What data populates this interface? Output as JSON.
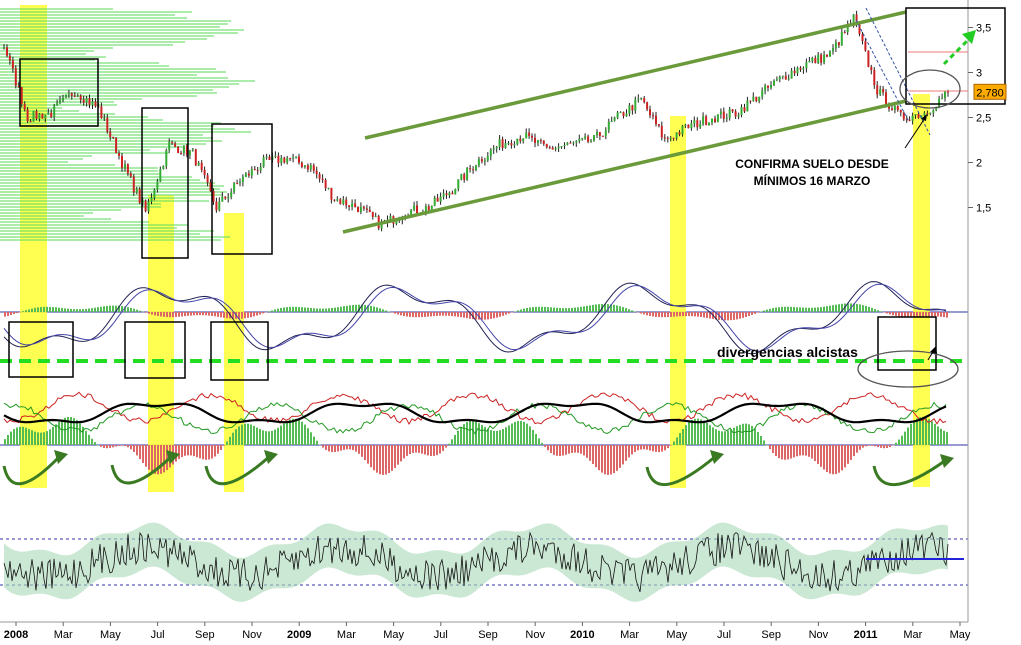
{
  "chart_data": {
    "type": "line",
    "price_axis": {
      "ticks": [
        {
          "label": "3,5",
          "value": 3.5
        },
        {
          "label": "3",
          "value": 3.0
        },
        {
          "label": "2,5",
          "value": 2.5
        },
        {
          "label": "2",
          "value": 2.0
        },
        {
          "label": "1,5",
          "value": 1.5
        }
      ],
      "ylim": [
        1.05,
        3.75
      ],
      "last_price_label": "2,780",
      "last_price": 2.78
    },
    "time_axis": {
      "labels": [
        {
          "label": "2008",
          "bold": true
        },
        {
          "label": "Mar",
          "bold": false
        },
        {
          "label": "May",
          "bold": false
        },
        {
          "label": "Jul",
          "bold": false
        },
        {
          "label": "Sep",
          "bold": false
        },
        {
          "label": "Nov",
          "bold": false
        },
        {
          "label": "2009",
          "bold": true
        },
        {
          "label": "Mar",
          "bold": false
        },
        {
          "label": "May",
          "bold": false
        },
        {
          "label": "Jul",
          "bold": false
        },
        {
          "label": "Sep",
          "bold": false
        },
        {
          "label": "Nov",
          "bold": false
        },
        {
          "label": "2010",
          "bold": true
        },
        {
          "label": "Mar",
          "bold": false
        },
        {
          "label": "May",
          "bold": false
        },
        {
          "label": "Jul",
          "bold": false
        },
        {
          "label": "Sep",
          "bold": false
        },
        {
          "label": "Nov",
          "bold": false
        },
        {
          "label": "2011",
          "bold": true
        },
        {
          "label": "Mar",
          "bold": false
        },
        {
          "label": "May",
          "bold": false
        }
      ]
    },
    "price_series": {
      "dates": [
        "2008-01",
        "2008-02",
        "2008-03",
        "2008-04",
        "2008-05",
        "2008-06",
        "2008-07",
        "2008-08",
        "2008-09",
        "2008-10",
        "2008-11",
        "2008-12",
        "2009-01",
        "2009-02",
        "2009-03",
        "2009-04",
        "2009-05",
        "2009-06",
        "2009-07",
        "2009-08",
        "2009-09",
        "2009-10",
        "2009-11",
        "2009-12",
        "2010-01",
        "2010-02",
        "2010-03",
        "2010-04",
        "2010-05",
        "2010-06",
        "2010-07",
        "2010-08",
        "2010-09",
        "2010-10",
        "2010-11",
        "2010-12",
        "2011-01",
        "2011-02",
        "2011-03",
        "2011-04",
        "2011-05"
      ],
      "values": [
        3.3,
        2.5,
        2.55,
        2.8,
        2.6,
        2.0,
        1.45,
        2.2,
        2.1,
        1.5,
        1.8,
        2.0,
        2.05,
        1.95,
        1.6,
        1.5,
        1.3,
        1.45,
        1.5,
        1.7,
        2.0,
        2.2,
        2.3,
        2.15,
        2.2,
        2.25,
        2.5,
        2.7,
        2.25,
        2.4,
        2.5,
        2.55,
        2.75,
        2.95,
        3.1,
        3.2,
        3.6,
        2.8,
        2.5,
        2.55,
        2.78
      ]
    },
    "annotations": {
      "confirm_line1": "CONFIRMA SUELO DESDE",
      "confirm_line2": "MÍNIMOS 16 MARZO",
      "divergence": "divergencias alcistas"
    }
  }
}
